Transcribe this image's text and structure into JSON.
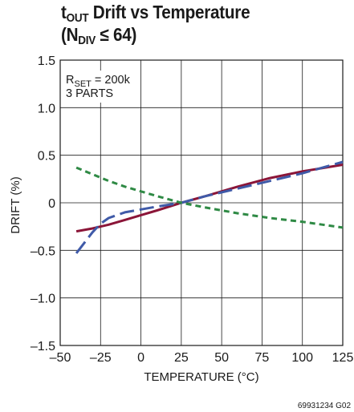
{
  "figure_code": "69931234 G02",
  "chart_data": {
    "type": "line",
    "title": {
      "line1_main": "t",
      "line1_sub": "OUT",
      "line1_rest": " Drift vs Temperature",
      "line2_open": "(N",
      "line2_sub": "DIV",
      "line2_rest": " ≤ 64)"
    },
    "xlabel": "TEMPERATURE (°C)",
    "ylabel": "DRIFT (%)",
    "xlim": [
      -50,
      125
    ],
    "ylim": [
      -1.5,
      1.5
    ],
    "x_ticks": [
      -50,
      -25,
      0,
      25,
      50,
      75,
      100,
      125
    ],
    "x_tick_labels": [
      "–50",
      "–25",
      "0",
      "25",
      "50",
      "75",
      "100",
      "125"
    ],
    "y_ticks": [
      -1.5,
      -1.0,
      -0.5,
      0,
      0.5,
      1.0,
      1.5
    ],
    "y_tick_labels": [
      "–1.5",
      "–1.0",
      "–0.5",
      "0",
      "0.5",
      "1.0",
      "1.5"
    ],
    "grid": true,
    "annotation": {
      "line1_main": "R",
      "line1_sub": "SET",
      "line1_rest": " = 200k",
      "line2": "3 PARTS"
    },
    "series": [
      {
        "color": "#8b1538",
        "dash": "solid",
        "x": [
          -40,
          -30,
          -20,
          -10,
          0,
          10,
          25,
          40,
          60,
          80,
          100,
          125
        ],
        "y": [
          -0.3,
          -0.27,
          -0.23,
          -0.18,
          -0.13,
          -0.08,
          0.0,
          0.07,
          0.17,
          0.26,
          0.33,
          0.4
        ]
      },
      {
        "color": "#3f5aa8",
        "dash": "long-dash",
        "x": [
          -40,
          -35,
          -30,
          -25,
          -20,
          -10,
          0,
          10,
          25,
          40,
          60,
          80,
          100,
          125
        ],
        "y": [
          -0.53,
          -0.42,
          -0.31,
          -0.22,
          -0.16,
          -0.1,
          -0.07,
          -0.04,
          0.0,
          0.07,
          0.15,
          0.23,
          0.31,
          0.43
        ]
      },
      {
        "color": "#2f8a45",
        "dash": "short-dash",
        "x": [
          -40,
          -30,
          -20,
          -10,
          0,
          10,
          25,
          40,
          60,
          80,
          100,
          125
        ],
        "y": [
          0.37,
          0.3,
          0.23,
          0.17,
          0.12,
          0.07,
          0.0,
          -0.05,
          -0.11,
          -0.16,
          -0.2,
          -0.26
        ]
      }
    ]
  }
}
